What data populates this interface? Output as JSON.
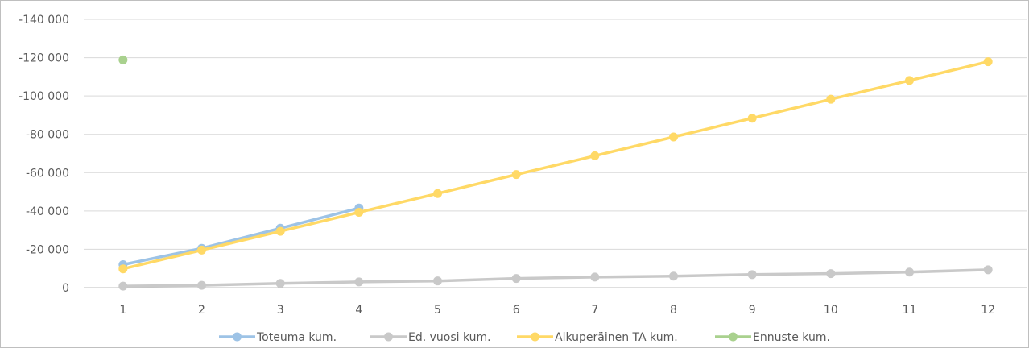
{
  "chart_data": {
    "type": "line",
    "categories": [
      "1",
      "2",
      "3",
      "4",
      "5",
      "6",
      "7",
      "8",
      "9",
      "10",
      "11",
      "12"
    ],
    "y_ticks": [
      "0",
      "-20 000",
      "-40 000",
      "-60 000",
      "-80 000",
      "-100 000",
      "-120 000",
      "-140 000"
    ],
    "ylim": [
      0,
      -140000
    ],
    "grid": true,
    "legend_position": "bottom",
    "series": [
      {
        "name": "Toteuma kum.",
        "color": "#9dc3e6",
        "values": [
          -12000,
          -20500,
          -31000,
          -41500,
          null,
          null,
          null,
          null,
          null,
          null,
          null,
          null
        ]
      },
      {
        "name": "Ed. vuosi kum.",
        "color": "#c9c9c9",
        "values": [
          -800,
          -1200,
          -2200,
          -3000,
          -3500,
          -4800,
          -5500,
          -6000,
          -6800,
          -7300,
          -8100,
          -9300
        ]
      },
      {
        "name": "Alkuperäinen TA kum.",
        "color": "#ffd966",
        "values": [
          -9800,
          -19600,
          -29400,
          -39300,
          -49100,
          -59000,
          -68800,
          -78600,
          -88400,
          -98300,
          -108100,
          -117900
        ]
      },
      {
        "name": "Ennuste kum.",
        "color": "#a9d18e",
        "values": [
          -118800,
          null,
          null,
          null,
          null,
          null,
          null,
          null,
          null,
          null,
          null,
          null
        ]
      }
    ]
  }
}
